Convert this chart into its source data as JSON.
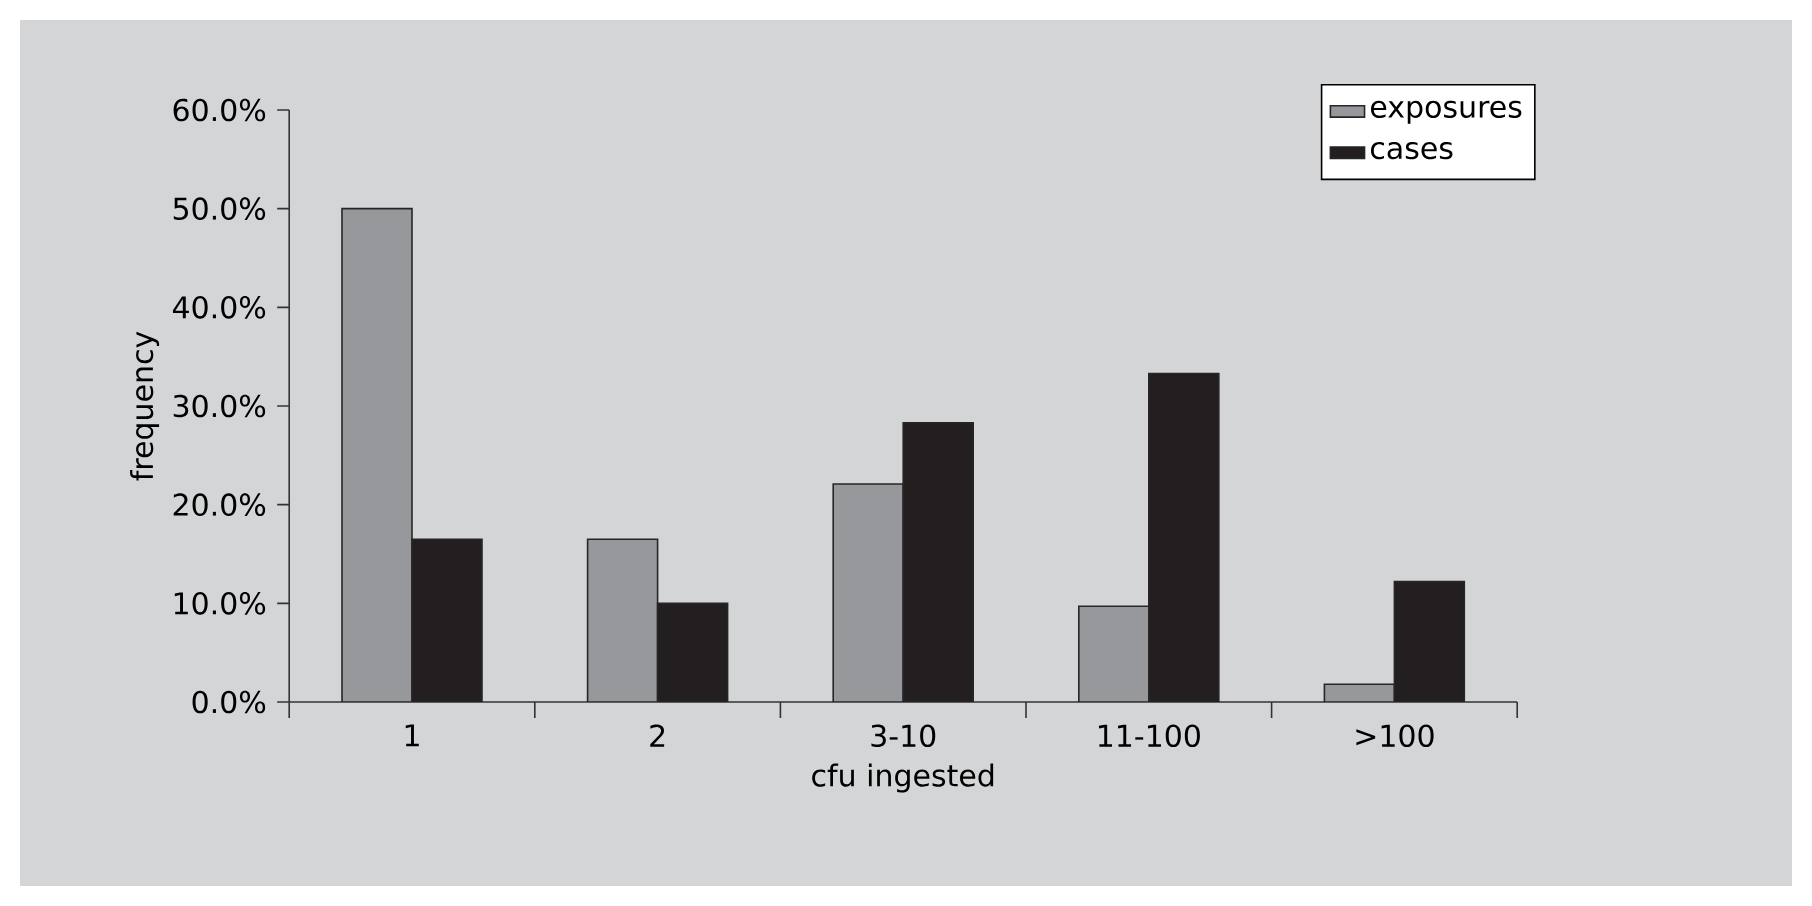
{
  "chart_data": {
    "type": "bar",
    "xlabel": "cfu ingested",
    "ylabel": "frequency",
    "categories": [
      "1",
      "2",
      "3-10",
      "11-100",
      ">100"
    ],
    "series": [
      {
        "name": "exposures",
        "color": "#97989c",
        "values": [
          50.0,
          16.5,
          22.1,
          9.7,
          1.8
        ]
      },
      {
        "name": "cases",
        "color": "#231f20",
        "values": [
          16.5,
          10.0,
          28.3,
          33.3,
          12.2
        ]
      }
    ],
    "ylim": [
      0,
      60
    ],
    "yticks": [
      {
        "value": 0,
        "label": "0.0%"
      },
      {
        "value": 10,
        "label": "10.0%"
      },
      {
        "value": 20,
        "label": "20.0%"
      },
      {
        "value": 30,
        "label": "30.0%"
      },
      {
        "value": 40,
        "label": "40.0%"
      },
      {
        "value": 50,
        "label": "50.0%"
      },
      {
        "value": 60,
        "label": "60.0%"
      }
    ],
    "grid": false,
    "legend": "top right"
  }
}
